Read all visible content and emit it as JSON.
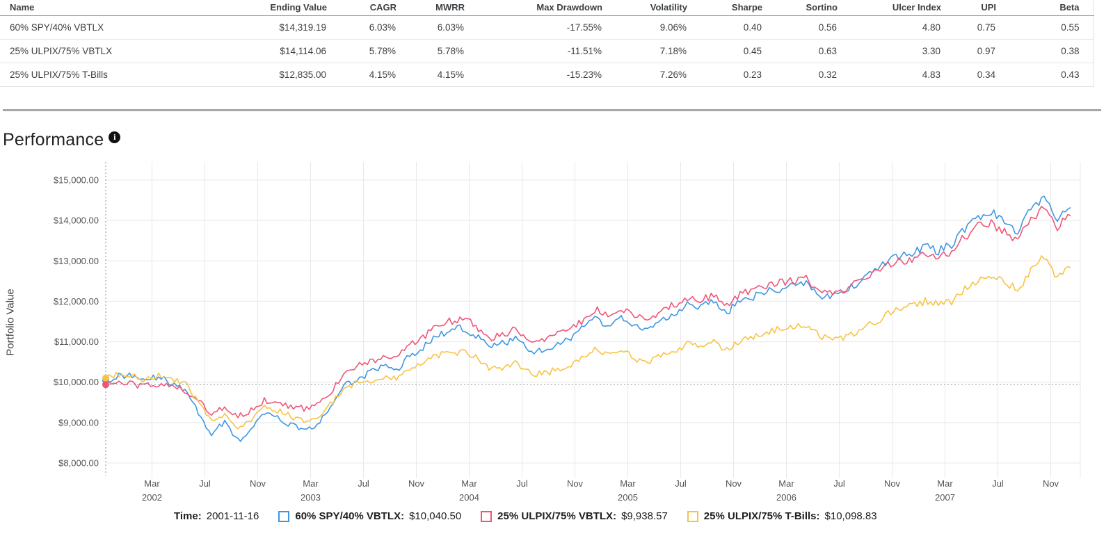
{
  "table": {
    "columns": [
      "Name",
      "Ending Value",
      "CAGR",
      "MWRR",
      "Max Drawdown",
      "Volatility",
      "Sharpe",
      "Sortino",
      "Ulcer Index",
      "UPI",
      "Beta"
    ],
    "rows": [
      {
        "name": "60% SPY/40% VBTLX",
        "ending_value": "$14,319.19",
        "cagr": "6.03%",
        "mwrr": "6.03%",
        "max_drawdown": "-17.55%",
        "volatility": "9.06%",
        "sharpe": "0.40",
        "sortino": "0.56",
        "ulcer_index": "4.80",
        "upi": "0.75",
        "beta": "0.55"
      },
      {
        "name": "25% ULPIX/75% VBTLX",
        "ending_value": "$14,114.06",
        "cagr": "5.78%",
        "mwrr": "5.78%",
        "max_drawdown": "-11.51%",
        "volatility": "7.18%",
        "sharpe": "0.45",
        "sortino": "0.63",
        "ulcer_index": "3.30",
        "upi": "0.97",
        "beta": "0.38"
      },
      {
        "name": "25% ULPIX/75% T-Bills",
        "ending_value": "$12,835.00",
        "cagr": "4.15%",
        "mwrr": "4.15%",
        "max_drawdown": "-15.23%",
        "volatility": "7.26%",
        "sharpe": "0.23",
        "sortino": "0.32",
        "ulcer_index": "4.83",
        "upi": "0.34",
        "beta": "0.43"
      }
    ]
  },
  "section": {
    "title": "Performance",
    "info_icon_glyph": "i"
  },
  "legend": {
    "time_label": "Time:",
    "time_value": "2001-11-16",
    "items": [
      {
        "label": "60% SPY/40% VBTLX:",
        "value": "$10,040.50",
        "color": "#3d97e3"
      },
      {
        "label": "25% ULPIX/75% VBTLX:",
        "value": "$9,938.57",
        "color": "#f05578"
      },
      {
        "label": "25% ULPIX/75% T-Bills:",
        "value": "$10,098.83",
        "color": "#f7c344"
      }
    ]
  },
  "chart_data": {
    "type": "line",
    "title": "Performance",
    "ylabel": "Portfolio Value",
    "xlabel": "",
    "ylim": [
      8000,
      15000
    ],
    "x_range": [
      "2001-11-16",
      "2007-12-31"
    ],
    "grid": true,
    "legend_position": "bottom",
    "colors": {
      "grid": "#e8e8e8",
      "crosshair": "#9aabb5",
      "axis_text": "#545454"
    },
    "crosshair": {
      "date": "2001-11-16",
      "y_value": 9938.57
    },
    "y_ticks": [
      {
        "value": 8000,
        "label": "$8,000.00"
      },
      {
        "value": 9000,
        "label": "$9,000.00"
      },
      {
        "value": 10000,
        "label": "$10,000.00"
      },
      {
        "value": 11000,
        "label": "$11,000.00"
      },
      {
        "value": 12000,
        "label": "$12,000.00"
      },
      {
        "value": 13000,
        "label": "$13,000.00"
      },
      {
        "value": 14000,
        "label": "$14,000.00"
      },
      {
        "value": 15000,
        "label": "$15,000.00"
      }
    ],
    "x_ticks": [
      {
        "label": "Mar",
        "year": "2002"
      },
      {
        "label": "Jul"
      },
      {
        "label": "Nov"
      },
      {
        "label": "Mar",
        "year": "2003"
      },
      {
        "label": "Jul"
      },
      {
        "label": "Nov"
      },
      {
        "label": "Mar",
        "year": "2004"
      },
      {
        "label": "Jul"
      },
      {
        "label": "Nov"
      },
      {
        "label": "Mar",
        "year": "2005"
      },
      {
        "label": "Jul"
      },
      {
        "label": "Nov"
      },
      {
        "label": "Mar",
        "year": "2006"
      },
      {
        "label": "Jul"
      },
      {
        "label": "Nov"
      },
      {
        "label": "Mar",
        "year": "2007"
      },
      {
        "label": "Jul"
      },
      {
        "label": "Nov"
      }
    ],
    "monthly_start": "2001-11",
    "series": [
      {
        "name": "60% SPY/40% VBTLX",
        "color": "#3d97e3",
        "start_value": 10040.5,
        "end_value": 14319.19,
        "monthly_values": [
          10040,
          10150,
          10180,
          10050,
          10150,
          9950,
          9800,
          9250,
          8700,
          9050,
          8550,
          8800,
          9250,
          9100,
          8950,
          8850,
          8900,
          9400,
          9900,
          10050,
          10250,
          10400,
          10300,
          10650,
          10850,
          11150,
          11250,
          11350,
          11150,
          10900,
          10950,
          11100,
          10800,
          10750,
          10950,
          11050,
          11300,
          11550,
          11400,
          11600,
          11400,
          11250,
          11550,
          11700,
          11950,
          11850,
          12000,
          11700,
          12050,
          12100,
          12250,
          12300,
          12400,
          12500,
          12150,
          12100,
          12250,
          12500,
          12750,
          12950,
          13100,
          13200,
          13350,
          13250,
          13400,
          13800,
          14100,
          14200,
          13950,
          13700,
          14300,
          14600,
          14050,
          14319
        ]
      },
      {
        "name": "25% ULPIX/75% VBTLX",
        "color": "#f05578",
        "start_value": 9938.57,
        "end_value": 14114.06,
        "monthly_values": [
          9939,
          9990,
          9950,
          9900,
          9960,
          9870,
          9800,
          9600,
          9200,
          9400,
          9150,
          9300,
          9550,
          9480,
          9400,
          9350,
          9420,
          9750,
          10200,
          10400,
          10500,
          10650,
          10600,
          10950,
          11100,
          11400,
          11500,
          11600,
          11400,
          11100,
          11150,
          11350,
          11050,
          11000,
          11150,
          11250,
          11500,
          11800,
          11650,
          11800,
          11650,
          11500,
          11800,
          11900,
          12100,
          12050,
          12150,
          11900,
          12200,
          12250,
          12400,
          12450,
          12500,
          12550,
          12250,
          12200,
          12300,
          12500,
          12650,
          12850,
          13000,
          13050,
          13200,
          13100,
          13250,
          13600,
          13850,
          13950,
          13700,
          13500,
          14050,
          14300,
          13850,
          14114
        ]
      },
      {
        "name": "25% ULPIX/75% T-Bills",
        "color": "#f7c344",
        "start_value": 10098.83,
        "end_value": 12835.0,
        "monthly_values": [
          10099,
          10200,
          10150,
          10050,
          10200,
          10050,
          9950,
          9550,
          9000,
          9250,
          8900,
          9050,
          9400,
          9300,
          9150,
          9050,
          9100,
          9450,
          9850,
          10000,
          10050,
          10150,
          10100,
          10350,
          10450,
          10650,
          10700,
          10750,
          10600,
          10350,
          10350,
          10500,
          10250,
          10200,
          10300,
          10350,
          10600,
          10800,
          10650,
          10750,
          10600,
          10450,
          10700,
          10750,
          10950,
          10900,
          11000,
          10800,
          11050,
          11100,
          11250,
          11300,
          11350,
          11400,
          11150,
          11050,
          11100,
          11300,
          11450,
          11650,
          11800,
          11900,
          12000,
          11950,
          12000,
          12300,
          12550,
          12600,
          12450,
          12300,
          12750,
          13100,
          12600,
          12835
        ]
      }
    ]
  }
}
